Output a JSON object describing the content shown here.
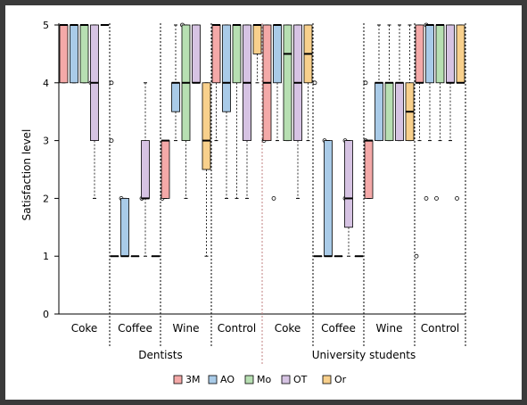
{
  "chart_data": {
    "type": "box",
    "ylabel": "Satisfaction level",
    "ylim": [
      0,
      5
    ],
    "yticks": [
      "0",
      "1",
      "2",
      "3",
      "4",
      "5"
    ],
    "groups": [
      "Dentists",
      "University students"
    ],
    "categories": [
      "Coke",
      "Coffee",
      "Wine",
      "Control",
      "Coke",
      "Coffee",
      "Wine",
      "Control"
    ],
    "series_names": [
      "3M",
      "AO",
      "Mo",
      "OT",
      "Or"
    ],
    "colors": {
      "3M": "#f4a9a8",
      "AO": "#a9cbe8",
      "Mo": "#b7dfb2",
      "OT": "#d6c3e3",
      "Or": "#f8d08c"
    },
    "boxes": [
      [
        {
          "q1": 4,
          "med": 5,
          "q3": 5,
          "lo": 4,
          "hi": 5,
          "out": []
        },
        {
          "q1": 4,
          "med": 5,
          "q3": 5,
          "lo": 4,
          "hi": 5,
          "out": []
        },
        {
          "q1": 4,
          "med": 5,
          "q3": 5,
          "lo": 4,
          "hi": 5,
          "out": [
            4
          ]
        },
        {
          "q1": 3,
          "med": 4,
          "q3": 5,
          "lo": 2,
          "hi": 5,
          "out": []
        },
        {
          "q1": 5,
          "med": 5,
          "q3": 5,
          "lo": 5,
          "hi": 5,
          "out": [
            4,
            3
          ]
        }
      ],
      [
        {
          "q1": 1,
          "med": 1,
          "q3": 1,
          "lo": 1,
          "hi": 1,
          "out": [
            2
          ]
        },
        {
          "q1": 1,
          "med": 1,
          "q3": 2,
          "lo": 1,
          "hi": 2,
          "out": []
        },
        {
          "q1": 1,
          "med": 1,
          "q3": 1,
          "lo": 1,
          "hi": 1,
          "out": [
            2
          ]
        },
        {
          "q1": 2,
          "med": 2,
          "q3": 3,
          "lo": 1,
          "hi": 4,
          "out": []
        },
        {
          "q1": 1,
          "med": 1,
          "q3": 1,
          "lo": 1,
          "hi": 1,
          "out": [
            2
          ]
        }
      ],
      [
        {
          "q1": 2,
          "med": 3,
          "q3": 3,
          "lo": 2,
          "hi": 3,
          "out": []
        },
        {
          "q1": 3.5,
          "med": 4,
          "q3": 4,
          "lo": 3,
          "hi": 5,
          "out": [
            5
          ]
        },
        {
          "q1": 3,
          "med": 4,
          "q3": 5,
          "lo": 2,
          "hi": 5,
          "out": []
        },
        {
          "q1": 4,
          "med": 4,
          "q3": 5,
          "lo": 4,
          "hi": 5,
          "out": []
        },
        {
          "q1": 2.5,
          "med": 3,
          "q3": 4,
          "lo": 1,
          "hi": 4,
          "out": []
        }
      ],
      [
        {
          "q1": 4,
          "med": 5,
          "q3": 5,
          "lo": 3,
          "hi": 5,
          "out": []
        },
        {
          "q1": 3.5,
          "med": 4,
          "q3": 5,
          "lo": 2,
          "hi": 5,
          "out": []
        },
        {
          "q1": 4,
          "med": 5,
          "q3": 5,
          "lo": 2,
          "hi": 5,
          "out": []
        },
        {
          "q1": 3,
          "med": 4,
          "q3": 5,
          "lo": 2,
          "hi": 5,
          "out": []
        },
        {
          "q1": 4.5,
          "med": 5,
          "q3": 5,
          "lo": 4,
          "hi": 5,
          "out": [
            3
          ]
        }
      ],
      [
        {
          "q1": 3,
          "med": 4,
          "q3": 5,
          "lo": 3,
          "hi": 5,
          "out": [
            2
          ]
        },
        {
          "q1": 4,
          "med": 5,
          "q3": 5,
          "lo": 3,
          "hi": 5,
          "out": []
        },
        {
          "q1": 3,
          "med": 4.5,
          "q3": 5,
          "lo": 3,
          "hi": 5,
          "out": []
        },
        {
          "q1": 3,
          "med": 4,
          "q3": 5,
          "lo": 2,
          "hi": 5,
          "out": []
        },
        {
          "q1": 4,
          "med": 4.5,
          "q3": 5,
          "lo": 3,
          "hi": 5,
          "out": [
            4
          ]
        }
      ],
      [
        {
          "q1": 1,
          "med": 1,
          "q3": 1,
          "lo": 1,
          "hi": 1,
          "out": [
            3
          ]
        },
        {
          "q1": 1,
          "med": 1,
          "q3": 3,
          "lo": 1,
          "hi": 3,
          "out": []
        },
        {
          "q1": 1,
          "med": 1,
          "q3": 1,
          "lo": 1,
          "hi": 1,
          "out": [
            2,
            3
          ]
        },
        {
          "q1": 1.5,
          "med": 2,
          "q3": 3,
          "lo": 1,
          "hi": 3,
          "out": []
        },
        {
          "q1": 1,
          "med": 1,
          "q3": 1,
          "lo": 1,
          "hi": 1,
          "out": [
            4,
            3
          ]
        }
      ],
      [
        {
          "q1": 2,
          "med": 3,
          "q3": 3,
          "lo": 2,
          "hi": 3,
          "out": []
        },
        {
          "q1": 3,
          "med": 4,
          "q3": 4,
          "lo": 3,
          "hi": 5,
          "out": []
        },
        {
          "q1": 3,
          "med": 4,
          "q3": 4,
          "lo": 3,
          "hi": 5,
          "out": []
        },
        {
          "q1": 3,
          "med": 4,
          "q3": 4,
          "lo": 3,
          "hi": 5,
          "out": []
        },
        {
          "q1": 3,
          "med": 3.5,
          "q3": 4,
          "lo": 3,
          "hi": 5,
          "out": [
            1
          ]
        }
      ],
      [
        {
          "q1": 4,
          "med": 4,
          "q3": 5,
          "lo": 3,
          "hi": 5,
          "out": [
            2,
            5
          ]
        },
        {
          "q1": 4,
          "med": 5,
          "q3": 5,
          "lo": 3,
          "hi": 5,
          "out": [
            2
          ]
        },
        {
          "q1": 4,
          "med": 5,
          "q3": 5,
          "lo": 3,
          "hi": 5,
          "out": []
        },
        {
          "q1": 4,
          "med": 4,
          "q3": 5,
          "lo": 3,
          "hi": 5,
          "out": [
            2
          ]
        },
        {
          "q1": 4,
          "med": 4,
          "q3": 5,
          "lo": 4,
          "hi": 5,
          "out": []
        }
      ]
    ]
  }
}
